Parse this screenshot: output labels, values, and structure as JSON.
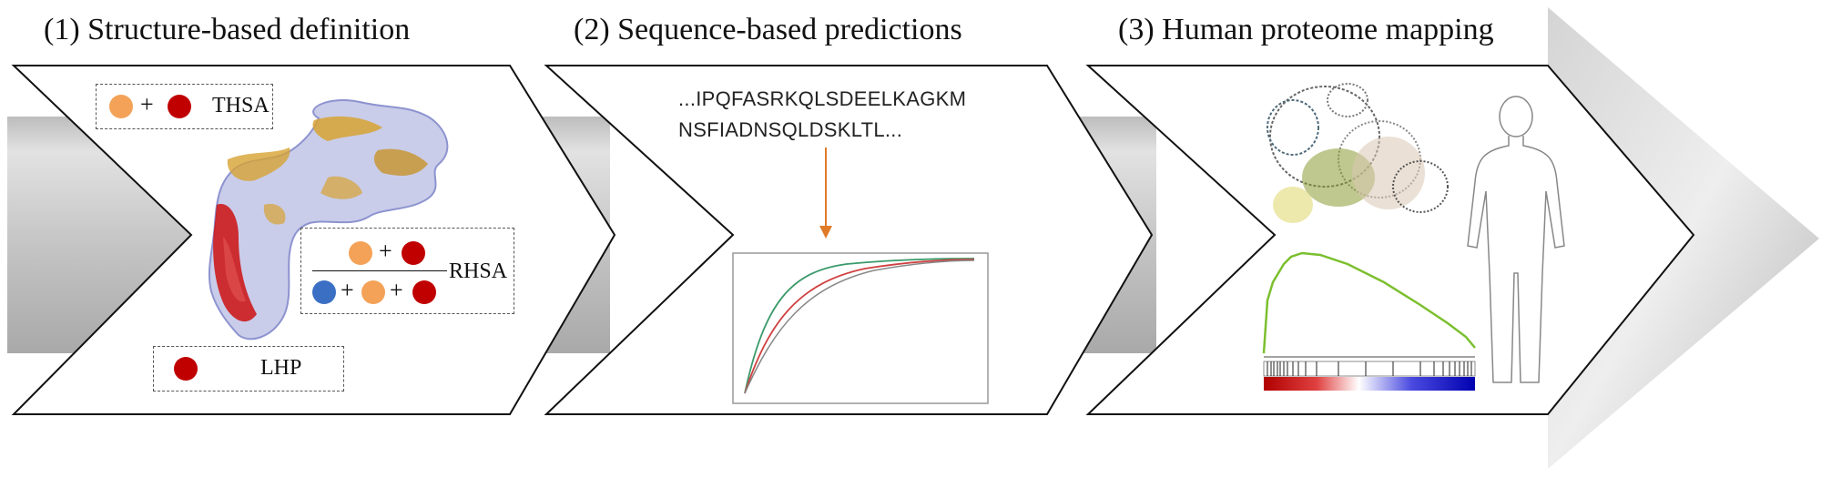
{
  "titles": {
    "step1": "(1) Structure-based definition",
    "step2": "(2) Sequence-based predictions",
    "step3": "(3) Human proteome mapping"
  },
  "legend": {
    "thsa": "THSA",
    "rhsa": "RHSA",
    "lhp": "LHP",
    "plus": "+"
  },
  "sequence": {
    "line1": "...IPQFASRKQLSDEELKAGKM",
    "line2": "NSFIADNSQLDSKLTL..."
  },
  "colors": {
    "orange": "#f4a258",
    "red": "#c00000",
    "blue": "#3b6fc4",
    "green": "#7bbf2e",
    "arrow": "#e07b2a"
  }
}
